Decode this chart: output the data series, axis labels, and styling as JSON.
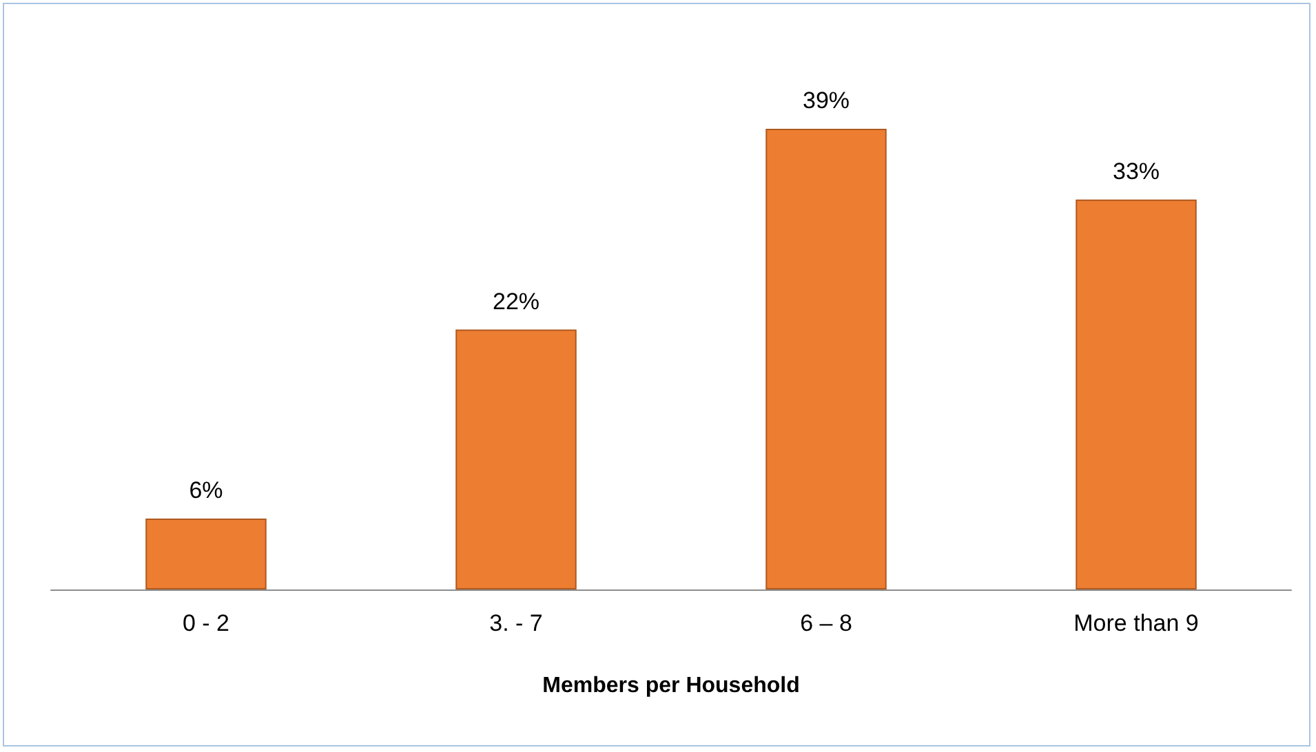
{
  "chart_data": {
    "type": "bar",
    "xlabel": "Members per Household",
    "categories": [
      "0 - 2",
      "3. - 7",
      "6 – 8",
      "More than 9"
    ],
    "values": [
      6,
      22,
      39,
      33
    ],
    "value_labels": [
      "6%",
      "22%",
      "39%",
      "33%"
    ],
    "color": "#ed7d31"
  }
}
